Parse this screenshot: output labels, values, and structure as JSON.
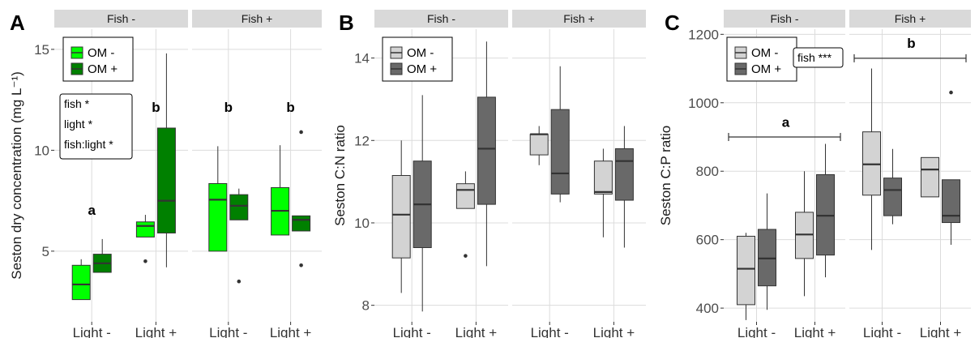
{
  "chart_data": [
    {
      "panel_label": "A",
      "type": "box",
      "ylabel": "Seston dry concentration (mg L⁻¹)",
      "ylim": [
        1.5,
        16
      ],
      "yticks": [
        5,
        10,
        15
      ],
      "facets": [
        "Fish -",
        "Fish +"
      ],
      "categories": [
        "Light -",
        "Light +"
      ],
      "series_names": [
        "OM -",
        "OM +"
      ],
      "colors": [
        "#00ff00",
        "#008000"
      ],
      "legend_position": "top-left",
      "grid": true,
      "boxes": [
        {
          "facet": "Fish -",
          "x": "Light -",
          "series": "OM -",
          "min": 2.6,
          "q1": 2.6,
          "median": 3.35,
          "q3": 4.3,
          "max": 4.6,
          "outliers": []
        },
        {
          "facet": "Fish -",
          "x": "Light -",
          "series": "OM +",
          "min": 3.95,
          "q1": 3.95,
          "median": 4.4,
          "q3": 4.85,
          "max": 5.6,
          "outliers": []
        },
        {
          "facet": "Fish -",
          "x": "Light +",
          "series": "OM -",
          "min": 5.7,
          "q1": 5.7,
          "median": 6.25,
          "q3": 6.45,
          "max": 6.8,
          "outliers": [
            4.5
          ]
        },
        {
          "facet": "Fish -",
          "x": "Light +",
          "series": "OM +",
          "min": 4.2,
          "q1": 5.9,
          "median": 7.5,
          "q3": 11.1,
          "max": 14.8,
          "outliers": []
        },
        {
          "facet": "Fish +",
          "x": "Light -",
          "series": "OM -",
          "min": 5.0,
          "q1": 5.0,
          "median": 7.55,
          "q3": 8.35,
          "max": 10.2,
          "outliers": []
        },
        {
          "facet": "Fish +",
          "x": "Light -",
          "series": "OM +",
          "min": 6.55,
          "q1": 6.55,
          "median": 7.25,
          "q3": 7.8,
          "max": 8.1,
          "outliers": [
            3.5
          ]
        },
        {
          "facet": "Fish +",
          "x": "Light +",
          "series": "OM -",
          "min": 5.8,
          "q1": 5.8,
          "median": 7.0,
          "q3": 8.15,
          "max": 10.25,
          "outliers": []
        },
        {
          "facet": "Fish +",
          "x": "Light +",
          "series": "OM +",
          "min": 6.0,
          "q1": 6.0,
          "median": 6.55,
          "q3": 6.75,
          "max": 6.75,
          "outliers": [
            10.9,
            4.3
          ]
        }
      ],
      "letters": [
        {
          "facet": "Fish -",
          "x_index": 0,
          "y": 6.8,
          "text": "a"
        },
        {
          "facet": "Fish -",
          "x_index": 1,
          "y": 11.9,
          "text": "b"
        },
        {
          "facet": "Fish +",
          "x_index": 0,
          "y": 11.9,
          "text": "b"
        },
        {
          "facet": "Fish +",
          "x_index": 1,
          "y": 11.9,
          "text": "b"
        }
      ],
      "annotation_box": [
        "fish *",
        "light *",
        "fish:light *"
      ],
      "bracket": null
    },
    {
      "panel_label": "B",
      "type": "box",
      "ylabel": "Seston C:N ratio",
      "ylim": [
        7.6,
        14.7
      ],
      "yticks": [
        8,
        10,
        12,
        14
      ],
      "facets": [
        "Fish -",
        "Fish +"
      ],
      "categories": [
        "Light -",
        "Light +"
      ],
      "series_names": [
        "OM -",
        "OM +"
      ],
      "colors": [
        "#d3d3d3",
        "#696969"
      ],
      "legend_position": "top-left",
      "grid": true,
      "boxes": [
        {
          "facet": "Fish -",
          "x": "Light -",
          "series": "OM -",
          "min": 8.3,
          "q1": 9.15,
          "median": 10.2,
          "q3": 11.15,
          "max": 12.0,
          "outliers": []
        },
        {
          "facet": "Fish -",
          "x": "Light -",
          "series": "OM +",
          "min": 7.85,
          "q1": 9.4,
          "median": 10.45,
          "q3": 11.5,
          "max": 13.1,
          "outliers": []
        },
        {
          "facet": "Fish -",
          "x": "Light +",
          "series": "OM -",
          "min": 10.35,
          "q1": 10.35,
          "median": 10.8,
          "q3": 10.95,
          "max": 11.25,
          "outliers": [
            9.2
          ]
        },
        {
          "facet": "Fish -",
          "x": "Light +",
          "series": "OM +",
          "min": 8.95,
          "q1": 10.45,
          "median": 11.8,
          "q3": 13.05,
          "max": 14.4,
          "outliers": []
        },
        {
          "facet": "Fish +",
          "x": "Light -",
          "series": "OM -",
          "min": 11.4,
          "q1": 11.65,
          "median": 12.15,
          "q3": 12.15,
          "max": 12.35,
          "outliers": []
        },
        {
          "facet": "Fish +",
          "x": "Light -",
          "series": "OM +",
          "min": 10.5,
          "q1": 10.7,
          "median": 11.2,
          "q3": 12.75,
          "max": 13.8,
          "outliers": []
        },
        {
          "facet": "Fish +",
          "x": "Light +",
          "series": "OM -",
          "min": 9.65,
          "q1": 10.7,
          "median": 10.75,
          "q3": 11.5,
          "max": 11.8,
          "outliers": []
        },
        {
          "facet": "Fish +",
          "x": "Light +",
          "series": "OM +",
          "min": 9.4,
          "q1": 10.55,
          "median": 11.5,
          "q3": 11.8,
          "max": 12.35,
          "outliers": []
        }
      ],
      "letters": [],
      "annotation_box": [],
      "bracket": null
    },
    {
      "panel_label": "C",
      "type": "box",
      "ylabel": "Seston C:P ratio",
      "ylim": [
        360,
        1215
      ],
      "yticks": [
        400,
        600,
        800,
        1000,
        1200
      ],
      "facets": [
        "Fish -",
        "Fish +"
      ],
      "categories": [
        "Light -",
        "Light +"
      ],
      "series_names": [
        "OM -",
        "OM +"
      ],
      "colors": [
        "#d3d3d3",
        "#696969"
      ],
      "legend_position": "top-left",
      "grid": true,
      "boxes": [
        {
          "facet": "Fish -",
          "x": "Light -",
          "series": "OM -",
          "min": 365,
          "q1": 410,
          "median": 515,
          "q3": 610,
          "max": 620,
          "outliers": []
        },
        {
          "facet": "Fish -",
          "x": "Light -",
          "series": "OM +",
          "min": 395,
          "q1": 465,
          "median": 545,
          "q3": 630,
          "max": 735,
          "outliers": []
        },
        {
          "facet": "Fish -",
          "x": "Light +",
          "series": "OM -",
          "min": 435,
          "q1": 545,
          "median": 615,
          "q3": 680,
          "max": 800,
          "outliers": []
        },
        {
          "facet": "Fish -",
          "x": "Light +",
          "series": "OM +",
          "min": 490,
          "q1": 555,
          "median": 670,
          "q3": 790,
          "max": 880,
          "outliers": []
        },
        {
          "facet": "Fish +",
          "x": "Light -",
          "series": "OM -",
          "min": 570,
          "q1": 730,
          "median": 820,
          "q3": 915,
          "max": 1100,
          "outliers": []
        },
        {
          "facet": "Fish +",
          "x": "Light -",
          "series": "OM +",
          "min": 645,
          "q1": 670,
          "median": 745,
          "q3": 780,
          "max": 865,
          "outliers": []
        },
        {
          "facet": "Fish +",
          "x": "Light +",
          "series": "OM -",
          "min": 725,
          "q1": 725,
          "median": 805,
          "q3": 840,
          "max": 840,
          "outliers": []
        },
        {
          "facet": "Fish +",
          "x": "Light +",
          "series": "OM +",
          "min": 585,
          "q1": 650,
          "median": 670,
          "q3": 775,
          "max": 775,
          "outliers": [
            1030
          ]
        }
      ],
      "letters": [
        {
          "facet": "Fish -",
          "x_index": 0.5,
          "y": 930,
          "text": "a"
        },
        {
          "facet": "Fish +",
          "x_index": 0.5,
          "y": 1160,
          "text": "b"
        }
      ],
      "annotation_box": [
        "fish ***"
      ],
      "bracket": [
        {
          "facet": "Fish -",
          "y": 900
        },
        {
          "facet": "Fish +",
          "y": 1130
        }
      ]
    }
  ]
}
